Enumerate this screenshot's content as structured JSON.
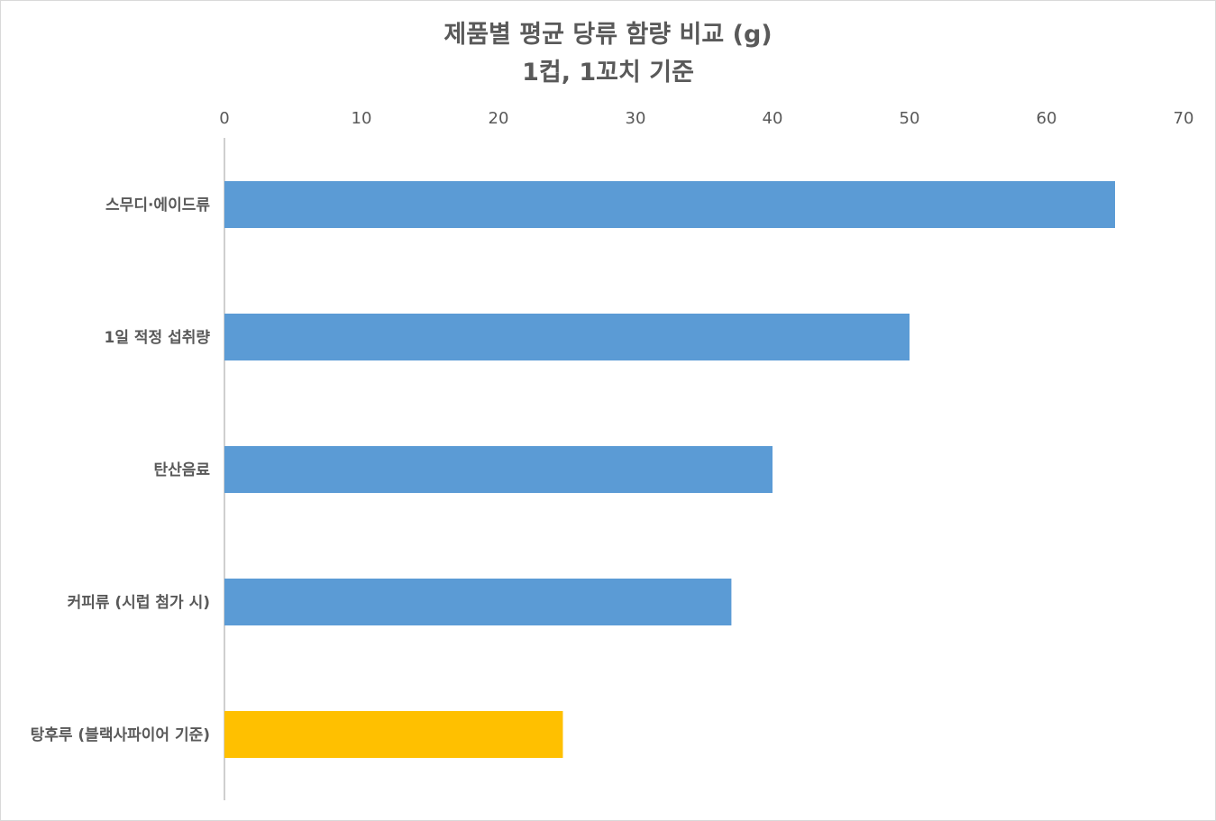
{
  "chart_data": {
    "type": "bar",
    "orientation": "horizontal",
    "title": "제품별 평균 당류 함량 비교 (g)",
    "subtitle": "1컵, 1꼬치 기준",
    "categories": [
      "스무디·에이드류",
      "1일 적정 섭취량",
      "탄산음료",
      "커피류 (시럽 첨가 시)",
      "탕후루 (블랙사파이어 기준)"
    ],
    "values": [
      65,
      50,
      40,
      37,
      24.7
    ],
    "bar_colors": [
      "#5b9bd5",
      "#5b9bd5",
      "#5b9bd5",
      "#5b9bd5",
      "#ffc000"
    ],
    "xlim": [
      0,
      70
    ],
    "xticks": [
      0,
      10,
      20,
      30,
      40,
      50,
      60,
      70
    ],
    "x_axis_position": "top",
    "grid": false,
    "legend": "none"
  }
}
